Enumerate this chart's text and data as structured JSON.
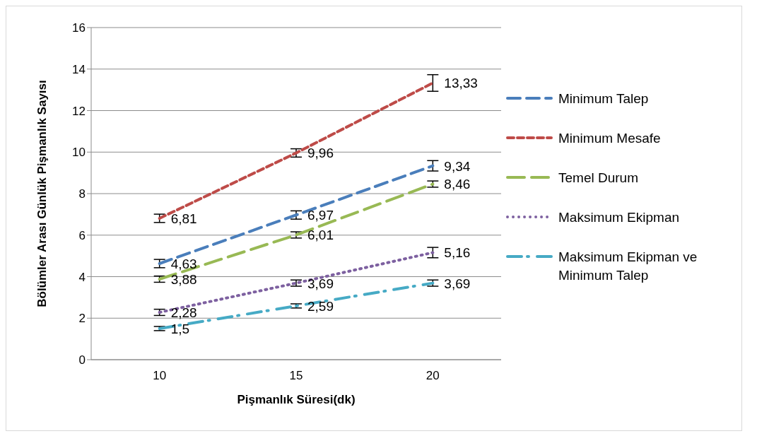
{
  "chart_data": {
    "type": "line",
    "xlabel": "Pişmanlık Süresi(dk)",
    "ylabel": "Bölümler Arası Günlük Pişmanlık Sayısı",
    "categories": [
      "10",
      "15",
      "20"
    ],
    "ylim": [
      0,
      16
    ],
    "yticks": [
      0,
      2,
      4,
      6,
      8,
      10,
      12,
      14,
      16
    ],
    "grid": "y",
    "legend": "right",
    "marker": "none",
    "series": [
      {
        "name": "Minimum Talep",
        "color": "#4a7ebb",
        "line_style": "dashed",
        "values": [
          4.63,
          6.97,
          9.34
        ],
        "errors": [
          0.2,
          0.2,
          0.25
        ],
        "value_labels": [
          "4,63",
          "6,97",
          "9,34"
        ]
      },
      {
        "name": "Minimum Mesafe",
        "color": "#be4b48",
        "line_style": "dashed",
        "values": [
          6.81,
          9.96,
          13.33
        ],
        "errors": [
          0.2,
          0.2,
          0.4
        ],
        "value_labels": [
          "6,81",
          "9,96",
          "13,33"
        ]
      },
      {
        "name": "Temel Durum",
        "color": "#98b954",
        "line_style": "dashed",
        "values": [
          3.88,
          6.01,
          8.46
        ],
        "errors": [
          0.15,
          0.15,
          0.15
        ],
        "value_labels": [
          "3,88",
          "6,01",
          "8,46"
        ]
      },
      {
        "name": "Maksimum Ekipman",
        "color": "#7d60a0",
        "line_style": "dotted",
        "values": [
          2.28,
          3.69,
          5.16
        ],
        "errors": [
          0.15,
          0.15,
          0.25
        ],
        "value_labels": [
          "2,28",
          "3,69",
          "5,16"
        ]
      },
      {
        "name": "Maksimum Ekipman ve Minimum Talep",
        "color": "#46aac5",
        "line_style": "dashed",
        "values": [
          1.5,
          2.59,
          3.69
        ],
        "errors": [
          0.1,
          0.1,
          0.15
        ],
        "value_labels": [
          "1,5",
          "2,59",
          "3,69"
        ]
      }
    ]
  }
}
